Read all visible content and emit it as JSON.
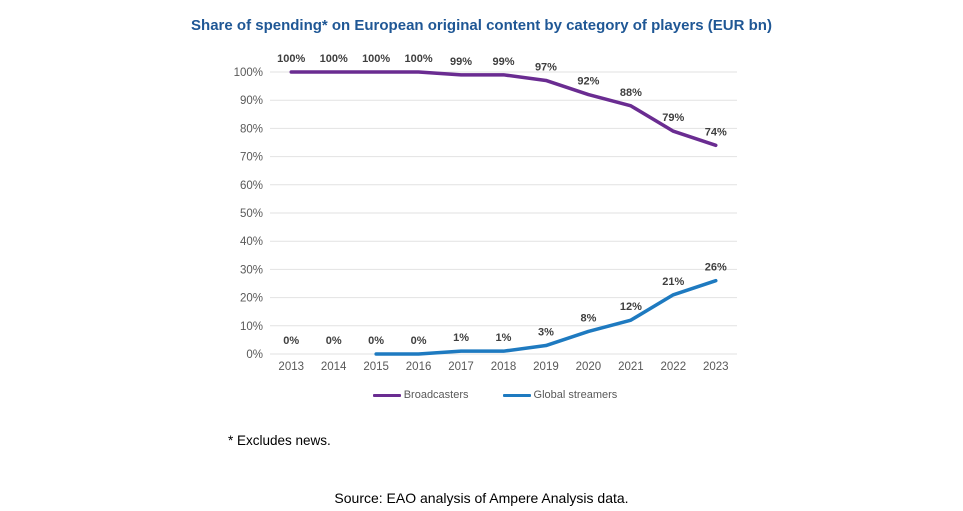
{
  "title": "Share of spending* on European original content by category of players (EUR bn)",
  "footnote": "* Excludes news.",
  "source": "Source: EAO analysis of Ampere Analysis data.",
  "colors": {
    "title": "#1F5795",
    "broadcasters": "#6A2C91",
    "streamers": "#1E7AC0",
    "gridline": "#E2E2E2",
    "axis_label": "#595959",
    "data_label": "#3F3F3F",
    "legend_text": "#595959"
  },
  "legend": {
    "items": [
      {
        "label": "Broadcasters",
        "color_key": "broadcasters"
      },
      {
        "label": "Global streamers",
        "color_key": "streamers"
      }
    ]
  },
  "chart_data": {
    "type": "line",
    "title": "Share of spending* on European original content by category of players (EUR bn)",
    "categories": [
      "2013",
      "2014",
      "2015",
      "2016",
      "2017",
      "2018",
      "2019",
      "2020",
      "2021",
      "2022",
      "2023"
    ],
    "series": [
      {
        "name": "Broadcasters",
        "color_key": "broadcasters",
        "values": [
          100,
          100,
          100,
          100,
          99,
          99,
          97,
          92,
          88,
          79,
          74
        ],
        "labels": [
          "100%",
          "100%",
          "100%",
          "100%",
          "99%",
          "99%",
          "97%",
          "92%",
          "88%",
          "79%",
          "74%"
        ]
      },
      {
        "name": "Global streamers",
        "color_key": "streamers",
        "values": [
          null,
          null,
          0,
          0,
          1,
          1,
          3,
          8,
          12,
          21,
          26
        ],
        "labels": [
          "0%",
          "0%",
          "0%",
          "0%",
          "1%",
          "1%",
          "3%",
          "8%",
          "12%",
          "21%",
          "26%"
        ]
      }
    ],
    "xlabel": "",
    "ylabel": "",
    "ylim": [
      0,
      100
    ],
    "ytick_step": 10,
    "ytick_labels": [
      "0%",
      "10%",
      "20%",
      "30%",
      "40%",
      "50%",
      "60%",
      "70%",
      "80%",
      "90%",
      "100%"
    ],
    "grid": true,
    "legend_position": "bottom"
  }
}
